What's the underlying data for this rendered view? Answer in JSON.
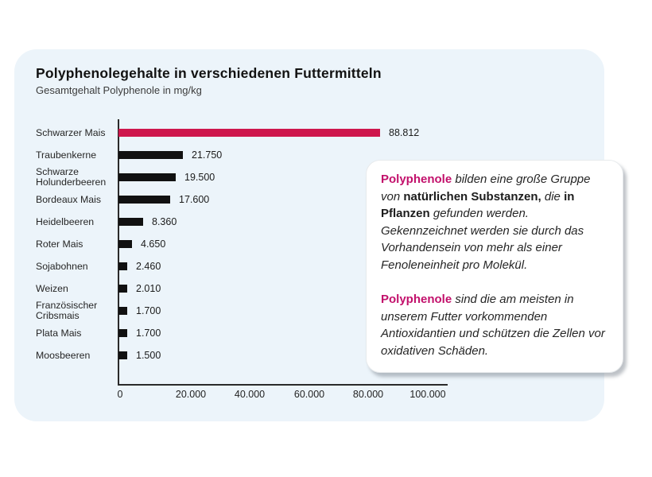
{
  "page": {
    "title": "Polyphenolegehalte in verschiedenen Futtermitteln",
    "subtitle": "Gesamtgehalt Polyphenole in mg/kg",
    "card_bg": "#ecf4fa"
  },
  "chart_data": {
    "type": "bar",
    "orientation": "horizontal",
    "title": "Polyphenolegehalte in verschiedenen Futtermitteln",
    "subtitle": "Gesamtgehalt Polyphenole in mg/kg",
    "unit": "mg/kg",
    "categories": [
      "Schwarzer Mais",
      "Traubenkerne",
      "Schwarze\nHolunderbeeren",
      "Bordeaux Mais",
      "Heidelbeeren",
      "Roter Mais",
      "Sojabohnen",
      "Weizen",
      "Französischer\nCribsmais",
      "Plata Mais",
      "Moosbeeren"
    ],
    "values": [
      88812,
      21750,
      19500,
      17600,
      8360,
      4650,
      2460,
      2010,
      1700,
      1700,
      1500
    ],
    "value_labels": [
      "88.812",
      "21.750",
      "19.500",
      "17.600",
      "8.360",
      "4.650",
      "2.460",
      "2.010",
      "1.700",
      "1.700",
      "1.500"
    ],
    "x_ticks": [
      "0",
      "20.000",
      "40.000",
      "60.000",
      "80.000",
      "100.000"
    ],
    "xlim": [
      0,
      100000
    ],
    "grid": false,
    "legend": false,
    "bar_color": "#111111",
    "highlight_index": 0,
    "highlight_color": "#ce164c"
  },
  "infobox": {
    "accent_color": "#c2106b",
    "paragraphs": [
      {
        "segments": [
          {
            "text": "Polyphenole",
            "style": "accent"
          },
          {
            "text": " bilden eine große Gruppe von ",
            "style": "italic"
          },
          {
            "text": "natürlichen Substanzen,",
            "style": "bold"
          },
          {
            "text": " die ",
            "style": "italic"
          },
          {
            "text": "in Pflanzen",
            "style": "bold"
          },
          {
            "text": " gefunden werden. Gekennzeichnet werden sie durch das Vorhandensein von mehr als einer Fenoleneinheit pro Molekül.",
            "style": "italic"
          }
        ]
      },
      {
        "segments": [
          {
            "text": "Polyphenole",
            "style": "accent"
          },
          {
            "text": " sind die am meisten in unserem Futter vorkommenden Antioxidantien und schützen die Zellen vor oxidativen Schäden.",
            "style": "italic"
          }
        ]
      }
    ]
  }
}
